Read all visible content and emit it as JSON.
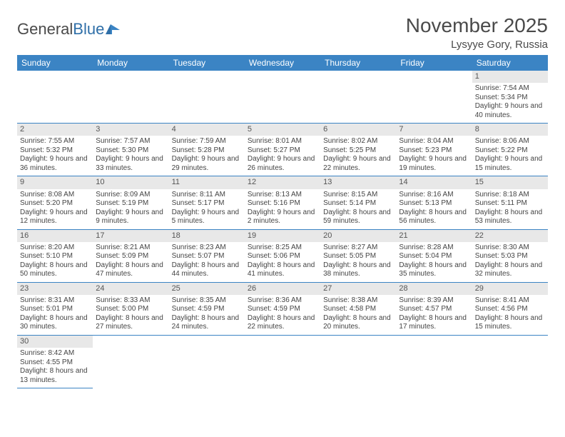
{
  "logo": {
    "part1": "General",
    "part2": "Blue"
  },
  "title": {
    "month": "November 2025",
    "location": "Lysyye Gory, Russia"
  },
  "colors": {
    "header_bg": "#3b84c4",
    "header_text": "#ffffff",
    "daynum_bg": "#e8e8e8",
    "row_border": "#3b84c4",
    "text": "#444444",
    "title_text": "#4a4a4a"
  },
  "weekdays": [
    "Sunday",
    "Monday",
    "Tuesday",
    "Wednesday",
    "Thursday",
    "Friday",
    "Saturday"
  ],
  "weeks": [
    [
      null,
      null,
      null,
      null,
      null,
      null,
      {
        "n": "1",
        "sr": "7:54 AM",
        "ss": "5:34 PM",
        "dl": "9 hours and 40 minutes."
      }
    ],
    [
      {
        "n": "2",
        "sr": "7:55 AM",
        "ss": "5:32 PM",
        "dl": "9 hours and 36 minutes."
      },
      {
        "n": "3",
        "sr": "7:57 AM",
        "ss": "5:30 PM",
        "dl": "9 hours and 33 minutes."
      },
      {
        "n": "4",
        "sr": "7:59 AM",
        "ss": "5:28 PM",
        "dl": "9 hours and 29 minutes."
      },
      {
        "n": "5",
        "sr": "8:01 AM",
        "ss": "5:27 PM",
        "dl": "9 hours and 26 minutes."
      },
      {
        "n": "6",
        "sr": "8:02 AM",
        "ss": "5:25 PM",
        "dl": "9 hours and 22 minutes."
      },
      {
        "n": "7",
        "sr": "8:04 AM",
        "ss": "5:23 PM",
        "dl": "9 hours and 19 minutes."
      },
      {
        "n": "8",
        "sr": "8:06 AM",
        "ss": "5:22 PM",
        "dl": "9 hours and 15 minutes."
      }
    ],
    [
      {
        "n": "9",
        "sr": "8:08 AM",
        "ss": "5:20 PM",
        "dl": "9 hours and 12 minutes."
      },
      {
        "n": "10",
        "sr": "8:09 AM",
        "ss": "5:19 PM",
        "dl": "9 hours and 9 minutes."
      },
      {
        "n": "11",
        "sr": "8:11 AM",
        "ss": "5:17 PM",
        "dl": "9 hours and 5 minutes."
      },
      {
        "n": "12",
        "sr": "8:13 AM",
        "ss": "5:16 PM",
        "dl": "9 hours and 2 minutes."
      },
      {
        "n": "13",
        "sr": "8:15 AM",
        "ss": "5:14 PM",
        "dl": "8 hours and 59 minutes."
      },
      {
        "n": "14",
        "sr": "8:16 AM",
        "ss": "5:13 PM",
        "dl": "8 hours and 56 minutes."
      },
      {
        "n": "15",
        "sr": "8:18 AM",
        "ss": "5:11 PM",
        "dl": "8 hours and 53 minutes."
      }
    ],
    [
      {
        "n": "16",
        "sr": "8:20 AM",
        "ss": "5:10 PM",
        "dl": "8 hours and 50 minutes."
      },
      {
        "n": "17",
        "sr": "8:21 AM",
        "ss": "5:09 PM",
        "dl": "8 hours and 47 minutes."
      },
      {
        "n": "18",
        "sr": "8:23 AM",
        "ss": "5:07 PM",
        "dl": "8 hours and 44 minutes."
      },
      {
        "n": "19",
        "sr": "8:25 AM",
        "ss": "5:06 PM",
        "dl": "8 hours and 41 minutes."
      },
      {
        "n": "20",
        "sr": "8:27 AM",
        "ss": "5:05 PM",
        "dl": "8 hours and 38 minutes."
      },
      {
        "n": "21",
        "sr": "8:28 AM",
        "ss": "5:04 PM",
        "dl": "8 hours and 35 minutes."
      },
      {
        "n": "22",
        "sr": "8:30 AM",
        "ss": "5:03 PM",
        "dl": "8 hours and 32 minutes."
      }
    ],
    [
      {
        "n": "23",
        "sr": "8:31 AM",
        "ss": "5:01 PM",
        "dl": "8 hours and 30 minutes."
      },
      {
        "n": "24",
        "sr": "8:33 AM",
        "ss": "5:00 PM",
        "dl": "8 hours and 27 minutes."
      },
      {
        "n": "25",
        "sr": "8:35 AM",
        "ss": "4:59 PM",
        "dl": "8 hours and 24 minutes."
      },
      {
        "n": "26",
        "sr": "8:36 AM",
        "ss": "4:59 PM",
        "dl": "8 hours and 22 minutes."
      },
      {
        "n": "27",
        "sr": "8:38 AM",
        "ss": "4:58 PM",
        "dl": "8 hours and 20 minutes."
      },
      {
        "n": "28",
        "sr": "8:39 AM",
        "ss": "4:57 PM",
        "dl": "8 hours and 17 minutes."
      },
      {
        "n": "29",
        "sr": "8:41 AM",
        "ss": "4:56 PM",
        "dl": "8 hours and 15 minutes."
      }
    ],
    [
      {
        "n": "30",
        "sr": "8:42 AM",
        "ss": "4:55 PM",
        "dl": "8 hours and 13 minutes."
      },
      null,
      null,
      null,
      null,
      null,
      null
    ]
  ],
  "labels": {
    "sunrise": "Sunrise:",
    "sunset": "Sunset:",
    "daylight": "Daylight:"
  }
}
